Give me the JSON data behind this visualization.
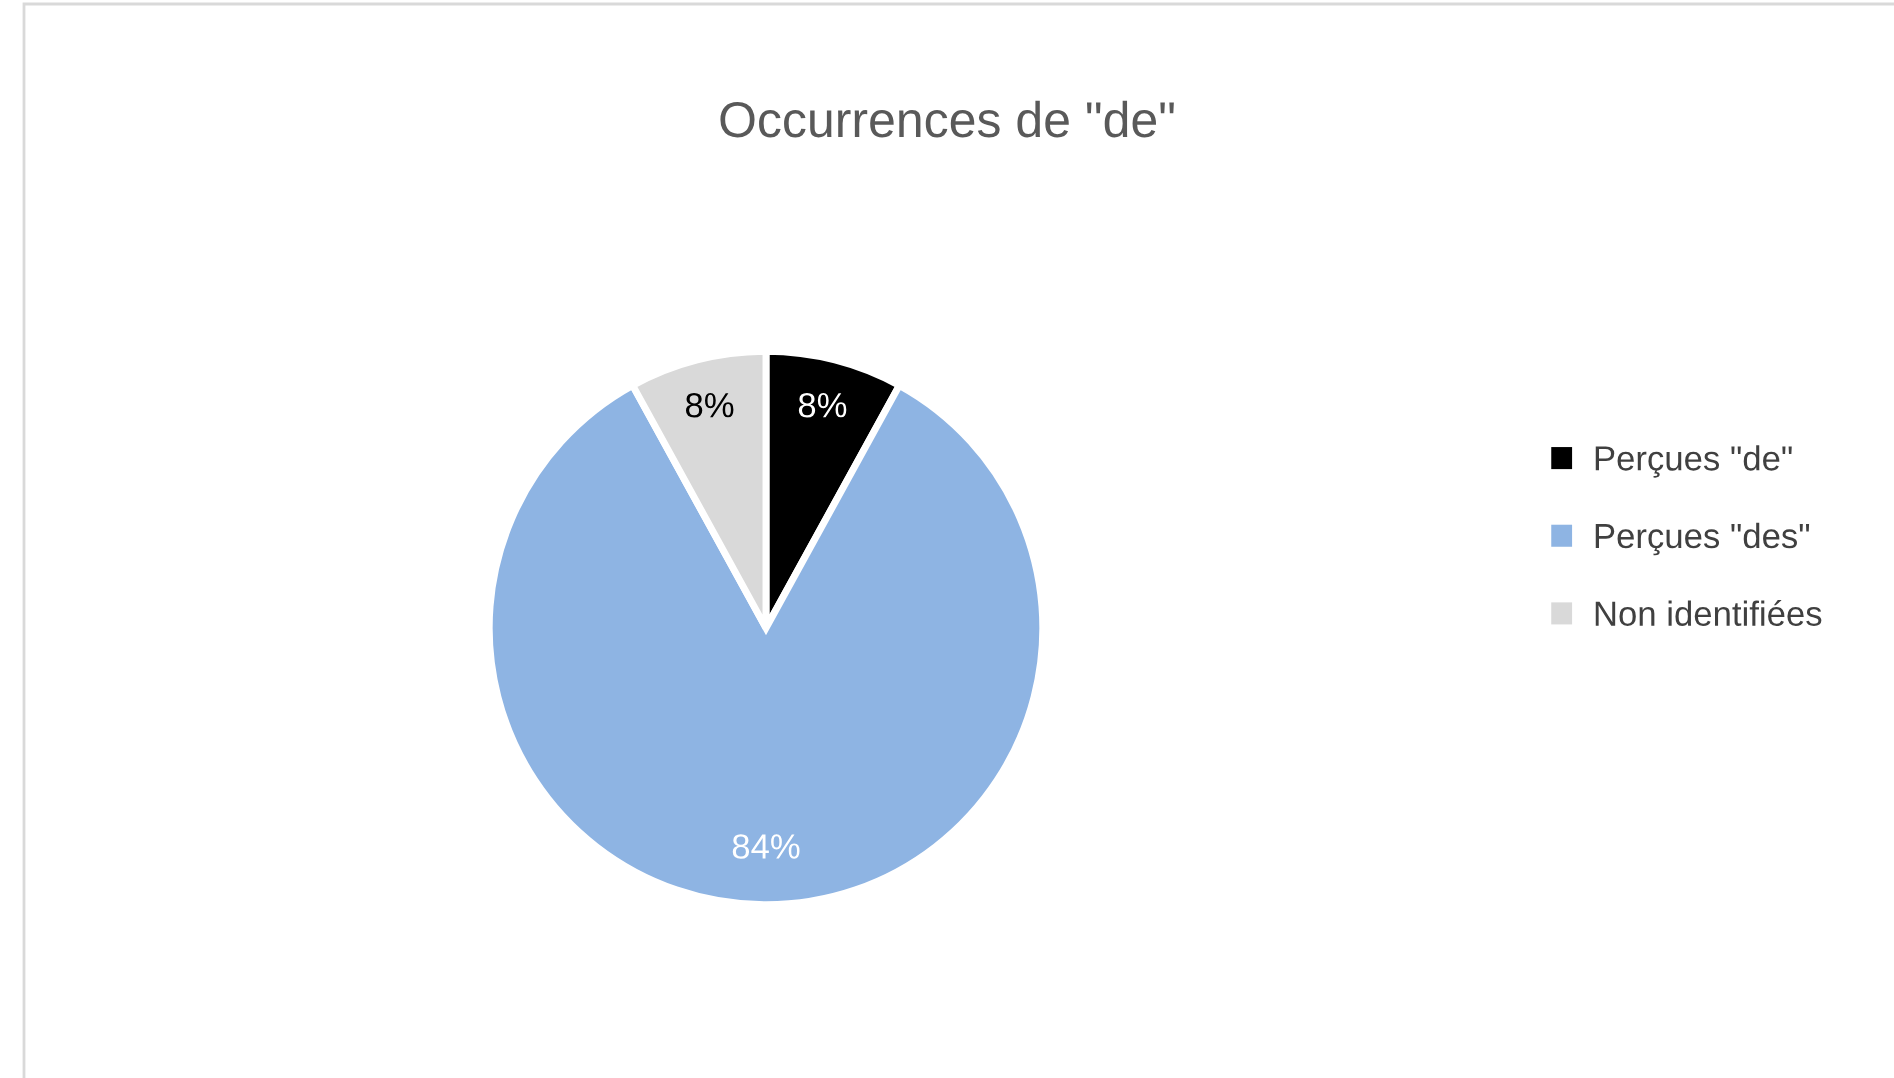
{
  "chart_data": {
    "type": "pie",
    "title": "Occurrences de \"de\"",
    "categories": [
      "Perçues \"de\"",
      "Perçues \"des\"",
      "Non identifiées"
    ],
    "values": [
      8,
      84,
      8
    ],
    "colors": [
      "#000000",
      "#8eb4e3",
      "#d9d9d9"
    ],
    "value_labels": [
      "8%",
      "84%",
      "8%"
    ],
    "legend": "right"
  }
}
